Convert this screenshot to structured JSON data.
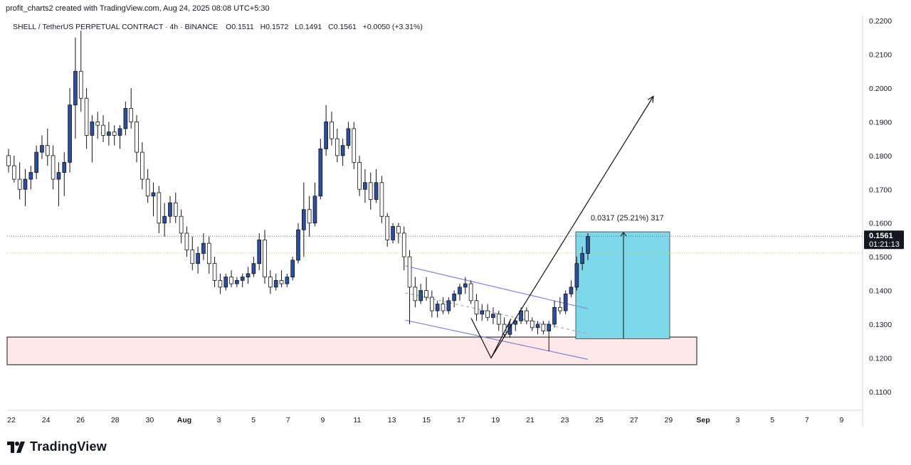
{
  "header": {
    "credit": "profit_charts2 created with TradingView.com, Aug 24, 2025 08:08 UTC+5:30"
  },
  "footer": {
    "logo_text": "TradingView"
  },
  "chart_data": {
    "type": "candlestick",
    "symbol_line": {
      "symbol": "SHELL / TetherUS PERPETUAL CONTRACT · 4h · BINANCE",
      "open": "O0.1511",
      "high": "H0.1572",
      "low": "L0.1491",
      "close": "C0.1561",
      "change": "+0.0050 (+3.31%)"
    },
    "price_axis": {
      "ticks": [
        "0.2200",
        "0.2100",
        "0.2000",
        "0.1900",
        "0.1800",
        "0.1700",
        "0.1600",
        "0.1500",
        "0.1400",
        "0.1300",
        "0.1200",
        "0.1100"
      ],
      "ylim": [
        0.1045,
        0.2215
      ]
    },
    "time_axis": {
      "labels": [
        "22",
        "24",
        "26",
        "28",
        "30",
        "Aug",
        "3",
        "5",
        "7",
        "9",
        "11",
        "13",
        "15",
        "17",
        "19",
        "21",
        "23",
        "25",
        "27",
        "29",
        "Sep",
        "3",
        "5",
        "7",
        "9"
      ]
    },
    "last_price": {
      "value": 0.1561,
      "label": "0.1561",
      "countdown": "01:21:13"
    },
    "reference_price": 0.1511,
    "measurement_label": "0.0317 (25.21%) 317",
    "annotations": {
      "support_zone": {
        "low": 0.118,
        "high": 0.1262
      },
      "target_zone": {
        "low": 0.1257,
        "high": 0.1574
      }
    },
    "colors": {
      "up_body": "#2a4fa0",
      "down_body": "#ffffff",
      "wick": "#111111",
      "support_fill": "#fde7e8",
      "target_fill": "#7dd9ea",
      "channel": "#7c86d8",
      "last_price_badge": "#131722"
    },
    "candles_ohlc": [
      [
        0.18,
        0.182,
        0.175,
        0.177
      ],
      [
        0.177,
        0.18,
        0.172,
        0.173
      ],
      [
        0.173,
        0.178,
        0.167,
        0.17
      ],
      [
        0.17,
        0.176,
        0.165,
        0.173
      ],
      [
        0.173,
        0.177,
        0.17,
        0.175
      ],
      [
        0.175,
        0.183,
        0.173,
        0.181
      ],
      [
        0.181,
        0.186,
        0.179,
        0.183
      ],
      [
        0.183,
        0.188,
        0.177,
        0.18
      ],
      [
        0.18,
        0.183,
        0.17,
        0.173
      ],
      [
        0.173,
        0.178,
        0.165,
        0.175
      ],
      [
        0.175,
        0.181,
        0.168,
        0.178
      ],
      [
        0.178,
        0.2,
        0.175,
        0.195
      ],
      [
        0.195,
        0.215,
        0.185,
        0.205
      ],
      [
        0.205,
        0.217,
        0.193,
        0.197
      ],
      [
        0.197,
        0.2,
        0.182,
        0.186
      ],
      [
        0.186,
        0.192,
        0.178,
        0.19
      ],
      [
        0.19,
        0.193,
        0.185,
        0.189
      ],
      [
        0.189,
        0.192,
        0.184,
        0.186
      ],
      [
        0.186,
        0.19,
        0.183,
        0.187
      ],
      [
        0.187,
        0.189,
        0.183,
        0.186
      ],
      [
        0.186,
        0.189,
        0.182,
        0.188
      ],
      [
        0.188,
        0.196,
        0.186,
        0.194
      ],
      [
        0.194,
        0.2,
        0.188,
        0.19
      ],
      [
        0.19,
        0.192,
        0.178,
        0.181
      ],
      [
        0.181,
        0.184,
        0.17,
        0.173
      ],
      [
        0.173,
        0.176,
        0.166,
        0.168
      ],
      [
        0.168,
        0.172,
        0.162,
        0.169
      ],
      [
        0.169,
        0.171,
        0.157,
        0.16
      ],
      [
        0.16,
        0.166,
        0.156,
        0.162
      ],
      [
        0.162,
        0.168,
        0.16,
        0.166
      ],
      [
        0.166,
        0.169,
        0.16,
        0.162
      ],
      [
        0.162,
        0.164,
        0.154,
        0.157
      ],
      [
        0.157,
        0.159,
        0.15,
        0.152
      ],
      [
        0.152,
        0.156,
        0.146,
        0.148
      ],
      [
        0.148,
        0.153,
        0.145,
        0.151
      ],
      [
        0.151,
        0.157,
        0.149,
        0.154
      ],
      [
        0.154,
        0.156,
        0.145,
        0.148
      ],
      [
        0.148,
        0.15,
        0.141,
        0.143
      ],
      [
        0.143,
        0.145,
        0.139,
        0.141
      ],
      [
        0.141,
        0.145,
        0.14,
        0.144
      ],
      [
        0.144,
        0.146,
        0.141,
        0.142
      ],
      [
        0.142,
        0.144,
        0.141,
        0.143
      ],
      [
        0.143,
        0.145,
        0.141,
        0.144
      ],
      [
        0.144,
        0.147,
        0.142,
        0.145
      ],
      [
        0.145,
        0.15,
        0.144,
        0.148
      ],
      [
        0.148,
        0.157,
        0.146,
        0.155
      ],
      [
        0.155,
        0.158,
        0.142,
        0.144
      ],
      [
        0.144,
        0.146,
        0.139,
        0.141
      ],
      [
        0.141,
        0.145,
        0.14,
        0.143
      ],
      [
        0.143,
        0.146,
        0.141,
        0.142
      ],
      [
        0.142,
        0.145,
        0.141,
        0.144
      ],
      [
        0.144,
        0.15,
        0.143,
        0.149
      ],
      [
        0.149,
        0.16,
        0.148,
        0.158
      ],
      [
        0.158,
        0.172,
        0.15,
        0.164
      ],
      [
        0.164,
        0.168,
        0.156,
        0.16
      ],
      [
        0.16,
        0.172,
        0.159,
        0.168
      ],
      [
        0.168,
        0.185,
        0.167,
        0.182
      ],
      [
        0.182,
        0.195,
        0.18,
        0.19
      ],
      [
        0.19,
        0.193,
        0.183,
        0.185
      ],
      [
        0.185,
        0.188,
        0.178,
        0.18
      ],
      [
        0.18,
        0.185,
        0.177,
        0.183
      ],
      [
        0.183,
        0.19,
        0.182,
        0.188
      ],
      [
        0.188,
        0.19,
        0.176,
        0.178
      ],
      [
        0.178,
        0.18,
        0.168,
        0.17
      ],
      [
        0.17,
        0.176,
        0.166,
        0.172
      ],
      [
        0.172,
        0.175,
        0.164,
        0.167
      ],
      [
        0.167,
        0.176,
        0.166,
        0.172
      ],
      [
        0.172,
        0.174,
        0.16,
        0.162
      ],
      [
        0.162,
        0.163,
        0.153,
        0.155
      ],
      [
        0.155,
        0.16,
        0.154,
        0.159
      ],
      [
        0.159,
        0.16,
        0.154,
        0.157
      ],
      [
        0.157,
        0.159,
        0.146,
        0.15
      ],
      [
        0.15,
        0.152,
        0.13,
        0.141
      ],
      [
        0.141,
        0.144,
        0.135,
        0.137
      ],
      [
        0.137,
        0.142,
        0.136,
        0.14
      ],
      [
        0.14,
        0.144,
        0.137,
        0.138
      ],
      [
        0.138,
        0.14,
        0.132,
        0.134
      ],
      [
        0.134,
        0.137,
        0.132,
        0.136
      ],
      [
        0.136,
        0.138,
        0.133,
        0.134
      ],
      [
        0.134,
        0.138,
        0.133,
        0.137
      ],
      [
        0.137,
        0.14,
        0.135,
        0.139
      ],
      [
        0.139,
        0.142,
        0.137,
        0.141
      ],
      [
        0.141,
        0.144,
        0.139,
        0.142
      ],
      [
        0.142,
        0.143,
        0.136,
        0.137
      ],
      [
        0.137,
        0.139,
        0.131,
        0.133
      ],
      [
        0.133,
        0.136,
        0.131,
        0.134
      ],
      [
        0.134,
        0.136,
        0.131,
        0.132
      ],
      [
        0.132,
        0.135,
        0.13,
        0.133
      ],
      [
        0.133,
        0.134,
        0.128,
        0.13
      ],
      [
        0.13,
        0.132,
        0.126,
        0.127
      ],
      [
        0.127,
        0.131,
        0.126,
        0.13
      ],
      [
        0.13,
        0.132,
        0.128,
        0.131
      ],
      [
        0.131,
        0.135,
        0.13,
        0.134
      ],
      [
        0.134,
        0.135,
        0.13,
        0.131
      ],
      [
        0.131,
        0.132,
        0.128,
        0.129
      ],
      [
        0.129,
        0.131,
        0.127,
        0.13
      ],
      [
        0.13,
        0.131,
        0.127,
        0.128
      ],
      [
        0.128,
        0.131,
        0.122,
        0.13
      ],
      [
        0.13,
        0.137,
        0.129,
        0.135
      ],
      [
        0.135,
        0.138,
        0.133,
        0.134
      ],
      [
        0.134,
        0.14,
        0.133,
        0.139
      ],
      [
        0.139,
        0.143,
        0.138,
        0.141
      ],
      [
        0.141,
        0.15,
        0.14,
        0.148
      ],
      [
        0.148,
        0.153,
        0.146,
        0.151
      ],
      [
        0.151,
        0.157,
        0.149,
        0.156
      ]
    ]
  }
}
